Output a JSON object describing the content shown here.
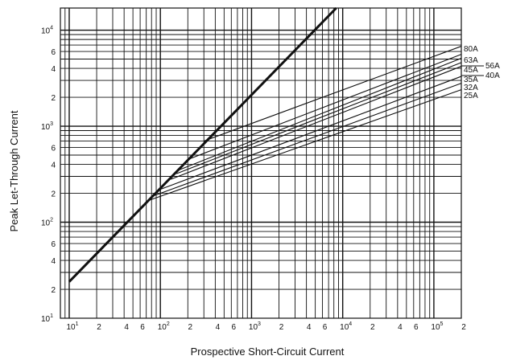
{
  "chart_data": {
    "type": "line",
    "title": "",
    "xlabel": "Prospective Short-Circuit Current",
    "ylabel": "Peak Let-Through Current",
    "x_scale": "log",
    "y_scale": "log",
    "xlim": [
      8,
      200000
    ],
    "ylim": [
      10,
      17000
    ],
    "grid": true,
    "x_ticks": [
      {
        "value": 10,
        "base": "10",
        "exp": "1"
      },
      {
        "value": 20,
        "label": "2"
      },
      {
        "value": 40,
        "label": "4"
      },
      {
        "value": 60,
        "label": "6"
      },
      {
        "value": 100,
        "base": "10",
        "exp": "2"
      },
      {
        "value": 200,
        "label": "2"
      },
      {
        "value": 400,
        "label": "4"
      },
      {
        "value": 600,
        "label": "6"
      },
      {
        "value": 1000,
        "base": "10",
        "exp": "3"
      },
      {
        "value": 2000,
        "label": "2"
      },
      {
        "value": 4000,
        "label": "4"
      },
      {
        "value": 6000,
        "label": "6"
      },
      {
        "value": 10000,
        "base": "10",
        "exp": "4"
      },
      {
        "value": 20000,
        "label": "2"
      },
      {
        "value": 40000,
        "label": "4"
      },
      {
        "value": 60000,
        "label": "6"
      },
      {
        "value": 100000,
        "base": "10",
        "exp": "5"
      },
      {
        "value": 200000,
        "label": "2"
      }
    ],
    "y_ticks": [
      {
        "value": 10,
        "base": "10",
        "exp": "1"
      },
      {
        "value": 20,
        "label": "2"
      },
      {
        "value": 40,
        "label": "4"
      },
      {
        "value": 60,
        "label": "6"
      },
      {
        "value": 100,
        "base": "10",
        "exp": "2"
      },
      {
        "value": 200,
        "label": "2"
      },
      {
        "value": 400,
        "label": "4"
      },
      {
        "value": 600,
        "label": "6"
      },
      {
        "value": 1000,
        "base": "10",
        "exp": "3"
      },
      {
        "value": 2000,
        "label": "2"
      },
      {
        "value": 4000,
        "label": "4"
      },
      {
        "value": 6000,
        "label": "6"
      },
      {
        "value": 10000,
        "base": "10",
        "exp": "4"
      }
    ],
    "diagonal": {
      "x": [
        10,
        8500
      ],
      "y": [
        24,
        17000
      ]
    },
    "series": [
      {
        "name": "80A",
        "x": [
          300,
          200000
        ],
        "y": [
          700,
          6800
        ]
      },
      {
        "name": "63A",
        "x": [
          200,
          200000
        ],
        "y": [
          450,
          5600
        ]
      },
      {
        "name": "56A",
        "x": [
          160,
          200000
        ],
        "y": [
          350,
          5100
        ]
      },
      {
        "name": "45A",
        "x": [
          150,
          200000
        ],
        "y": [
          320,
          4600
        ]
      },
      {
        "name": "40A",
        "x": [
          130,
          200000
        ],
        "y": [
          280,
          4200
        ]
      },
      {
        "name": "35A",
        "x": [
          100,
          200000
        ],
        "y": [
          220,
          3300
        ]
      },
      {
        "name": "32A",
        "x": [
          80,
          200000
        ],
        "y": [
          185,
          2800
        ]
      },
      {
        "name": "25A",
        "x": [
          70,
          200000
        ],
        "y": [
          165,
          2400
        ]
      }
    ]
  }
}
